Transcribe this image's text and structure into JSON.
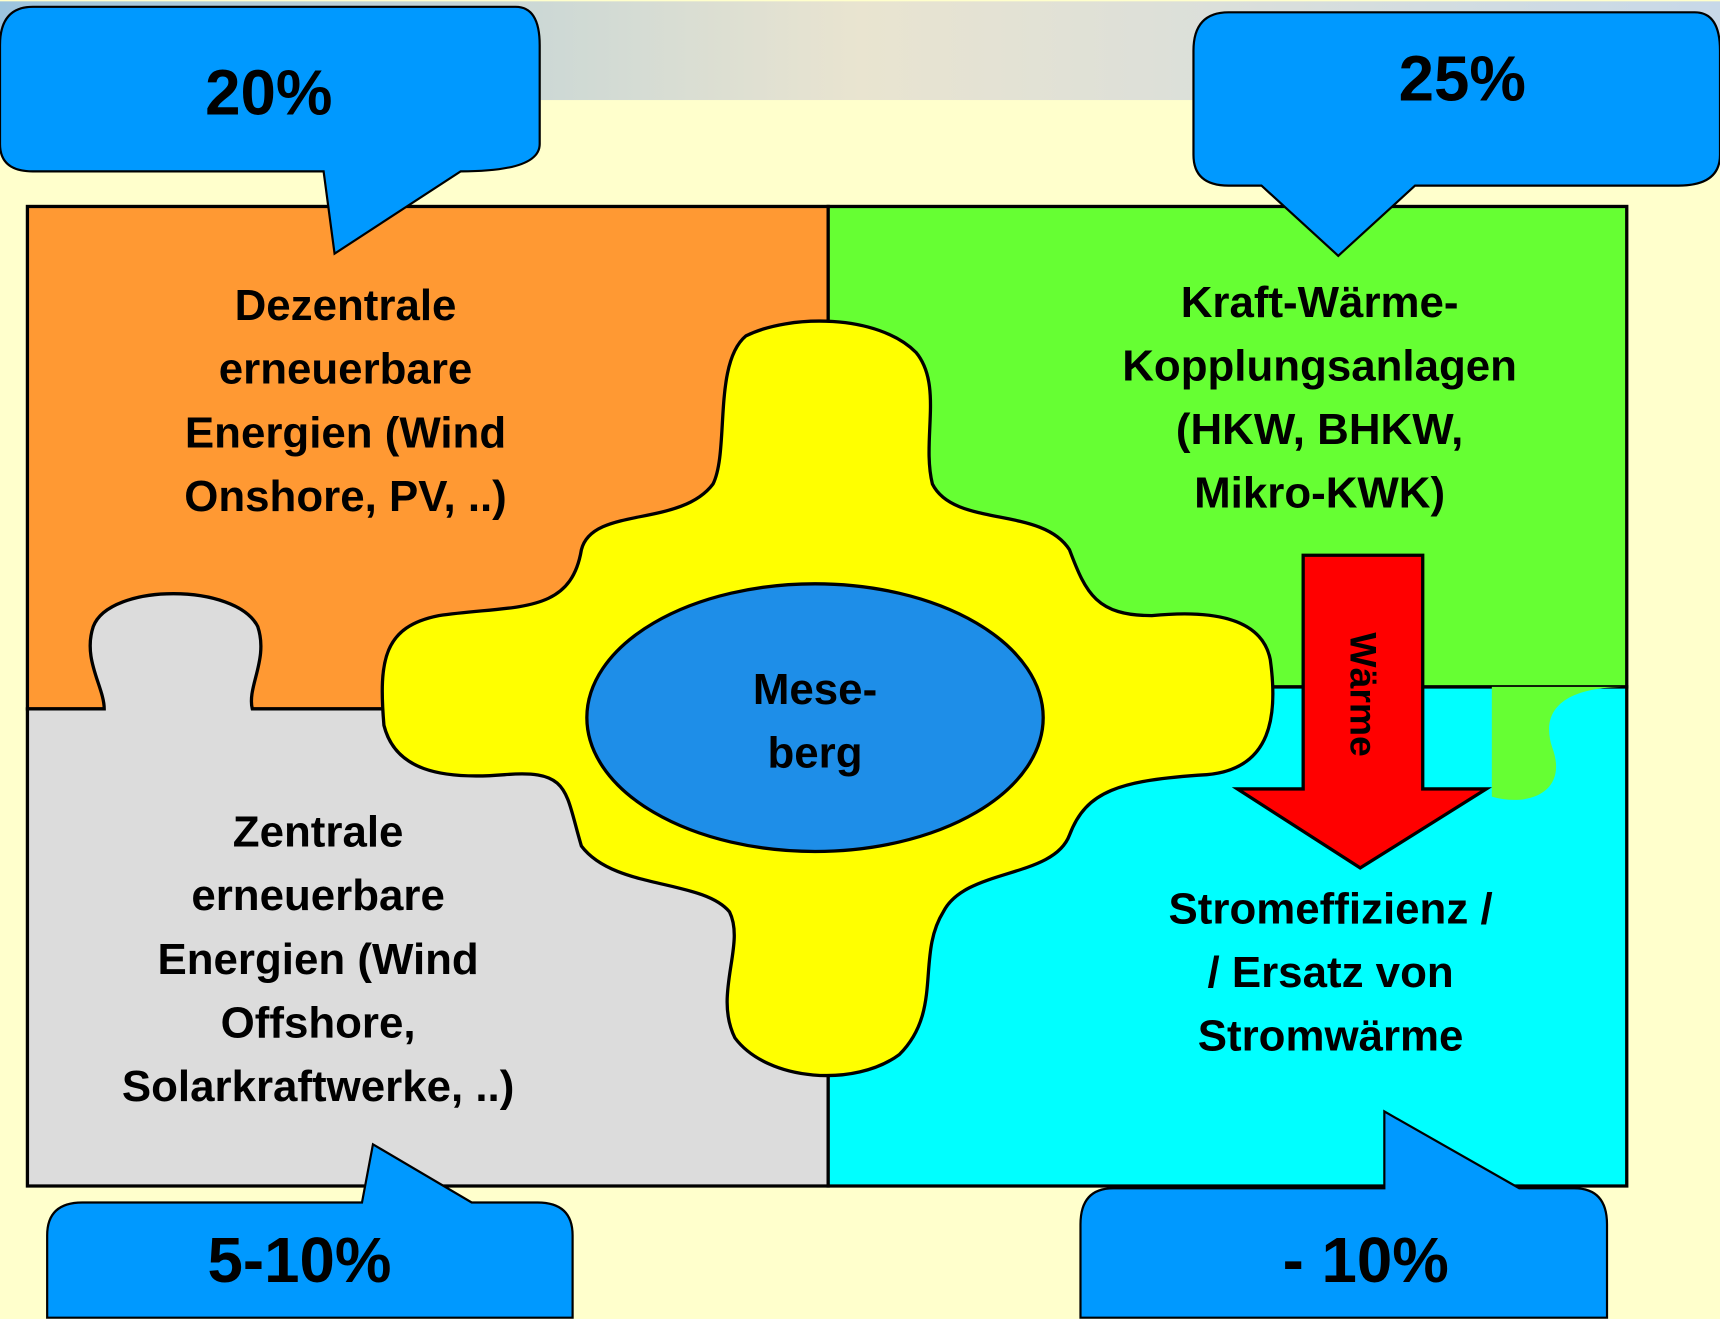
{
  "callouts": [
    {
      "label": "20%"
    },
    {
      "label": "25%"
    },
    {
      "label": "5-10%"
    },
    {
      "label": "- 10%"
    }
  ],
  "quadrants": [
    {
      "lines": [
        "Dezentrale",
        "erneuerbare",
        "Energien (Wind",
        "Onshore, PV, ..)"
      ]
    },
    {
      "lines": [
        "Kraft-Wärme-",
        "Kopplungsanlagen",
        "(HKW, BHKW,",
        "Mikro-KWK)"
      ]
    },
    {
      "lines": [
        "Zentrale",
        "erneuerbare",
        "Energien (Wind",
        "Offshore,",
        "Solarkraftwerke, ..)"
      ]
    },
    {
      "lines": [
        "Stromeffizienz /",
        "/ Ersatz von",
        "Stromwärme"
      ]
    }
  ],
  "center": {
    "lines": [
      "Mese-",
      "berg"
    ]
  },
  "arrow": {
    "label": "Wärme"
  }
}
